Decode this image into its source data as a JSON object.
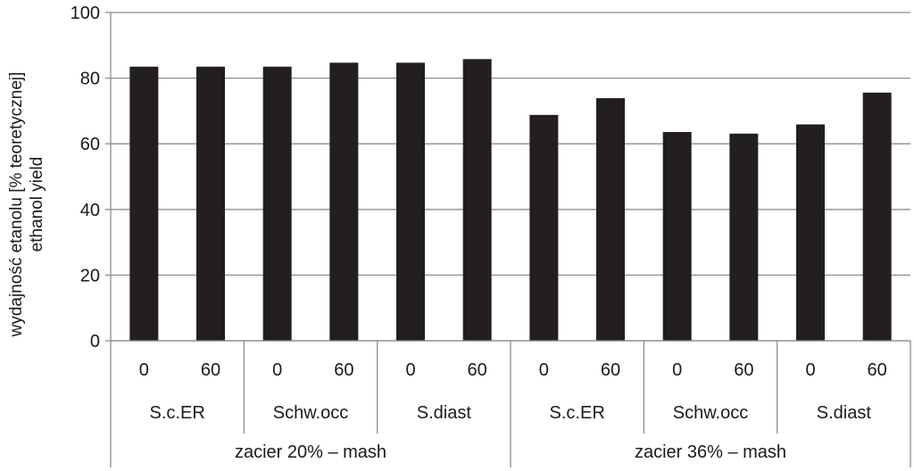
{
  "chart_data": {
    "type": "bar",
    "title": "",
    "xlabel": "",
    "ylabel_line1": "wydajność etanolu [% teoretycznej]",
    "ylabel_line2": "ethanol yield",
    "ylim": [
      0,
      100
    ],
    "yticks": [
      0,
      20,
      40,
      60,
      80,
      100
    ],
    "grid": true,
    "legend": "none",
    "bar_color": "#231f20",
    "categories": [
      {
        "level1": "0",
        "level2": "S.c.ER",
        "level3": "zacier 20% – mash"
      },
      {
        "level1": "60",
        "level2": "S.c.ER",
        "level3": "zacier 20% – mash"
      },
      {
        "level1": "0",
        "level2": "Schw.occ",
        "level3": "zacier 20% – mash"
      },
      {
        "level1": "60",
        "level2": "Schw.occ",
        "level3": "zacier 20% – mash"
      },
      {
        "level1": "0",
        "level2": "S.diast",
        "level3": "zacier 20% – mash"
      },
      {
        "level1": "60",
        "level2": "S.diast",
        "level3": "zacier 20% – mash"
      },
      {
        "level1": "0",
        "level2": "S.c.ER",
        "level3": "zacier 36% – mash"
      },
      {
        "level1": "60",
        "level2": "S.c.ER",
        "level3": "zacier 36% – mash"
      },
      {
        "level1": "0",
        "level2": "Schw.occ",
        "level3": "zacier 36% – mash"
      },
      {
        "level1": "60",
        "level2": "Schw.occ",
        "level3": "zacier 36% – mash"
      },
      {
        "level1": "0",
        "level2": "S.diast",
        "level3": "zacier 36% – mash"
      },
      {
        "level1": "60",
        "level2": "S.diast",
        "level3": "zacier 36% – mash"
      }
    ],
    "level2_groups": [
      "S.c.ER",
      "Schw.occ",
      "S.diast",
      "S.c.ER",
      "Schw.occ",
      "S.diast"
    ],
    "level3_groups": [
      "zacier 20% – mash",
      "zacier 36% – mash"
    ],
    "values": [
      83.5,
      83.5,
      83.5,
      84.7,
      84.7,
      85.8,
      68.8,
      73.9,
      63.6,
      63.1,
      65.9,
      75.6
    ]
  }
}
